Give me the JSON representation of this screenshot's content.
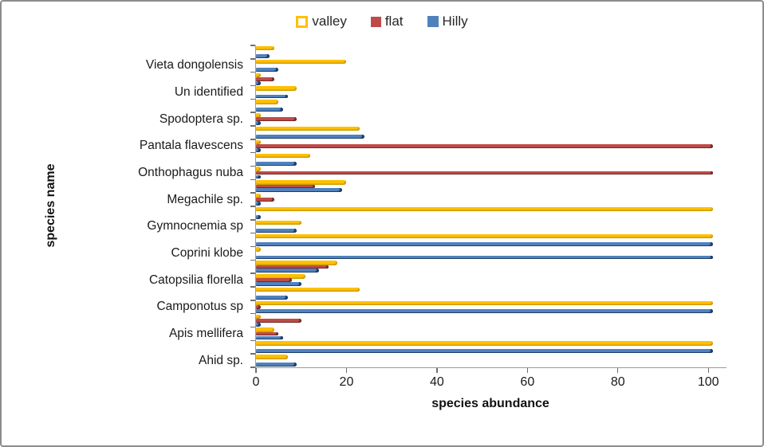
{
  "chart_data": {
    "type": "bar",
    "orientation": "horizontal",
    "title": "",
    "xlabel": "species abundance",
    "ylabel": "species name",
    "x_ticks": [
      0,
      20,
      40,
      60,
      80,
      100
    ],
    "xlim": [
      0,
      104
    ],
    "grid": false,
    "legend_position": "top-center",
    "note": "24 bar groups; axis labels shown only on alternating groups",
    "categories": [
      "",
      "Vieta dongolensis",
      "",
      "Un identified",
      "",
      "Spodoptera sp.",
      "",
      "Pantala flavescens",
      "",
      "Onthophagus nuba",
      "",
      "Megachile sp.",
      "",
      "Gymnocnemia sp",
      "",
      "Coprini klobe",
      "",
      "Catopsilia florella",
      "",
      "Camponotus sp",
      "",
      "Apis mellifera",
      "",
      "Ahid sp."
    ],
    "series": [
      {
        "name": "valley",
        "color": "#FFC000",
        "values": [
          4,
          20,
          1,
          9,
          5,
          1,
          23,
          1,
          12,
          1,
          20,
          1,
          101,
          10,
          101,
          1,
          18,
          11,
          23,
          101,
          1,
          4,
          101,
          7
        ]
      },
      {
        "name": "flat",
        "color": "#BE4B48",
        "values": [
          0,
          0,
          4,
          0,
          0,
          9,
          0,
          101,
          0,
          101,
          13,
          4,
          0,
          0,
          0,
          0,
          16,
          8,
          0,
          1,
          10,
          5,
          0,
          0
        ]
      },
      {
        "name": "Hilly",
        "color": "#4F81BD",
        "values": [
          3,
          5,
          1,
          7,
          6,
          1,
          24,
          1,
          9,
          1,
          19,
          1,
          1,
          9,
          101,
          101,
          14,
          10,
          7,
          101,
          1,
          6,
          101,
          9
        ]
      }
    ]
  },
  "legend": {
    "items": [
      {
        "label": "valley"
      },
      {
        "label": "flat"
      },
      {
        "label": "Hilly"
      }
    ]
  },
  "axis_colors": {
    "axis_line": "#9A9A9A",
    "tick": "#6F6F6F",
    "text": "#1A1A1A"
  }
}
